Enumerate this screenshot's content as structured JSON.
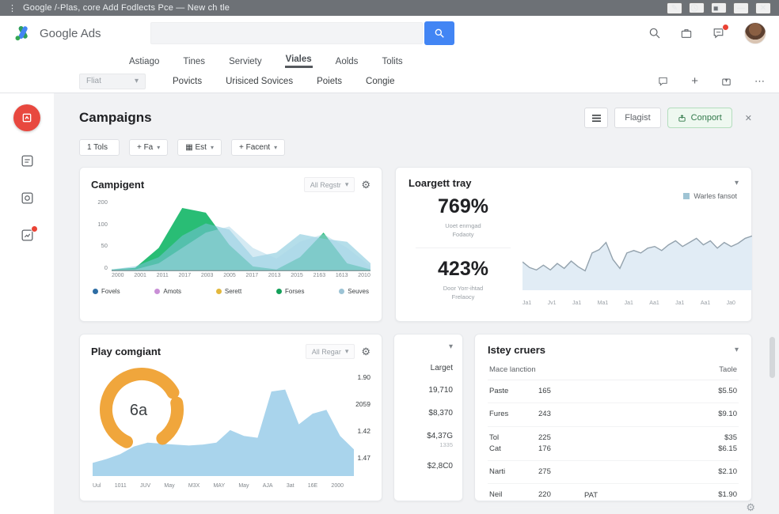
{
  "titlebar": {
    "title": "Google /-Plas, core Add Fodlects Pce — New ch tle",
    "menu_icon": "⋮",
    "minimize": "—",
    "close": "✕"
  },
  "appbar": {
    "brand": "Google Ads",
    "search": {
      "value": "",
      "placeholder": ""
    }
  },
  "tabs": [
    {
      "label": "Astiago",
      "active": false
    },
    {
      "label": "Tines",
      "active": false
    },
    {
      "label": "Serviety",
      "active": false
    },
    {
      "label": "Viales",
      "active": true
    },
    {
      "label": "Aolds",
      "active": false
    },
    {
      "label": "Tolits",
      "active": false
    }
  ],
  "subnav": {
    "filter_label": "Fliat",
    "filter_chevron": "▾",
    "links": [
      "Povicts",
      "Urisiced Sovices",
      "Poiets",
      "Congie"
    ],
    "plus": "+",
    "ellipsis": "⋯"
  },
  "page": {
    "title": "Campaigns",
    "flagist_label": "Flagist",
    "conport_label": "Conport",
    "close_x": "✕",
    "accent_green": "#31794a",
    "accent_red": "#e8483f",
    "accent_blue": "#4285f4"
  },
  "chips": [
    {
      "label": "1 Tols",
      "chev": ""
    },
    {
      "label": "+ Fa",
      "chev": "▾"
    },
    {
      "label": "▦ Est",
      "chev": "▾"
    },
    {
      "label": "+ Facent",
      "chev": "▾"
    }
  ],
  "cards": {
    "campigent": {
      "title": "Campigent",
      "dropdown": "All Regstr",
      "dropdown_chevron": "▾",
      "gear": "⚙",
      "legend": [
        {
          "label": "Fovels",
          "color": "#2e6da4"
        },
        {
          "label": "Amots",
          "color": "#c98fd6"
        },
        {
          "label": "Serett",
          "color": "#e3b83d"
        },
        {
          "label": "Forses",
          "color": "#14a05a"
        },
        {
          "label": "Seuves",
          "color": "#9cc3d5"
        }
      ]
    },
    "loargett": {
      "title": "Loargett tray",
      "chevron": "▾",
      "stat1": {
        "value": "769%",
        "line1": "Uoet enrngad",
        "line2": "Fodaoty"
      },
      "stat2": {
        "value": "423%",
        "line1": "Door Yorr-ihtad",
        "line2": "Frelaocy"
      },
      "legend_label": "Warles fansot",
      "legend_color": "#9fc4d4"
    },
    "play": {
      "title": "Play comgiant",
      "dropdown": "All Regar",
      "dropdown_chevron": "▾",
      "gear": "⚙"
    },
    "larget": {
      "chevron": "▾",
      "header": "Larget",
      "rows": [
        {
          "value": "19,710",
          "sub": ""
        },
        {
          "value": "$8,370",
          "sub": ""
        },
        {
          "value": "$4,37G",
          "sub": "1335"
        },
        {
          "value": "$2,8C0",
          "sub": ""
        }
      ]
    },
    "istey": {
      "title": "Istey cruers",
      "chevron": "▾",
      "col1": "Mace lanction",
      "col2": "Taole",
      "rows": [
        {
          "name": "Paste",
          "count": "165",
          "extra": "",
          "price": "$5.50"
        },
        {
          "name": "Fures",
          "count": "243",
          "extra": "",
          "price": "$9.10"
        },
        {
          "name": "Tol\nCat",
          "count": "225\n176",
          "extra": "",
          "price": "$35\n$6.15"
        },
        {
          "name": "Narti",
          "count": "275",
          "extra": "",
          "price": "$2.10"
        },
        {
          "name": "Neil",
          "count": "220",
          "extra": "PAT",
          "price": "$1.90"
        }
      ]
    }
  },
  "chart_data": [
    {
      "id": "campigent-area",
      "type": "area",
      "title": "Campigent",
      "categories": [
        "2000",
        "2001",
        "2011",
        "2017",
        "2003",
        "2005",
        "2017",
        "2013",
        "2015",
        "2163",
        "1613",
        "2010"
      ],
      "yticks": [
        "200",
        "100",
        "50",
        "0"
      ],
      "ylim": [
        0,
        220
      ],
      "baseline": true,
      "series": [
        {
          "name": "Forses",
          "color": "#1db96e",
          "opacity": 0.95,
          "values": [
            0,
            5,
            70,
            200,
            185,
            80,
            10,
            0,
            40,
            120,
            20,
            0
          ]
        },
        {
          "name": "Seuves",
          "color": "#79c2d8",
          "opacity": 0.55,
          "values": [
            0,
            10,
            40,
            110,
            150,
            130,
            40,
            55,
            115,
            100,
            90,
            20
          ]
        },
        {
          "name": "Fovels",
          "color": "#a9d6e8",
          "opacity": 0.5,
          "values": [
            0,
            0,
            20,
            70,
            120,
            140,
            70,
            35,
            90,
            115,
            70,
            10
          ]
        }
      ]
    },
    {
      "id": "warles-line",
      "type": "area",
      "title": "Warles fansot",
      "categories": [
        "Ja1",
        "Jv1",
        "Ja1",
        "Ma1",
        "Ja1",
        "Aa1",
        "Ja1",
        "Aa1",
        "Ja0"
      ],
      "ylim": [
        0,
        80
      ],
      "series": [
        {
          "name": "Warles fansot",
          "color": "#e1ecf5",
          "opacity": 1,
          "stroke": "#93a2ad",
          "values": [
            33,
            26,
            23,
            29,
            23,
            31,
            25,
            34,
            27,
            22,
            44,
            48,
            57,
            36,
            25,
            44,
            47,
            44,
            50,
            52,
            47,
            54,
            59,
            52,
            57,
            62,
            54,
            59,
            50,
            57,
            52,
            56,
            62,
            65
          ]
        }
      ]
    },
    {
      "id": "play-area",
      "type": "area",
      "title": "Play comgiant",
      "categories": [
        "Uul",
        "1011",
        "JUV",
        "May",
        "M3X",
        "MAY",
        "May",
        "AJA",
        "3at",
        "16E",
        "2000"
      ],
      "right_labels": [
        "1.90",
        "2059",
        "1.42",
        "1.47"
      ],
      "ylim": [
        0,
        100
      ],
      "series": [
        {
          "name": "Play",
          "color": "#a9d4ec",
          "opacity": 1,
          "values": [
            12,
            16,
            21,
            29,
            33,
            32,
            31,
            30,
            31,
            33,
            46,
            40,
            38,
            86,
            88,
            52,
            63,
            67,
            40,
            26
          ]
        }
      ]
    },
    {
      "id": "play-gauge",
      "type": "donut",
      "color": "#f0a63c",
      "segments": [
        0.6,
        0.05,
        0.18,
        0.17
      ],
      "rotation": 115,
      "label": "6a"
    }
  ]
}
